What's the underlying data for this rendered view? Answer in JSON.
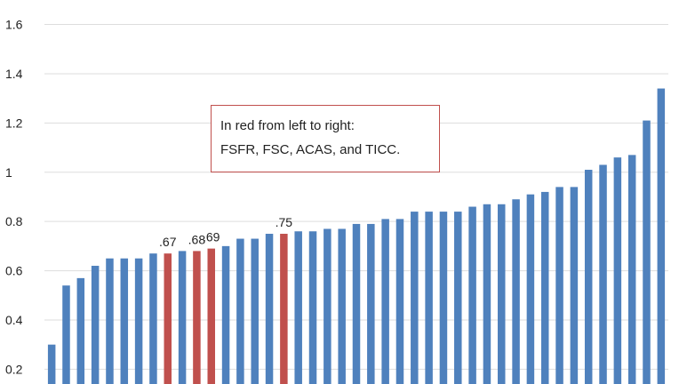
{
  "chart_data": {
    "type": "bar",
    "y_ticks": [
      "0.2",
      "0.4",
      "0.6",
      "0.8",
      "1",
      "1.2",
      "1.4",
      "1.6"
    ],
    "ylim": [
      0.14,
      1.62
    ],
    "grid": "horizontal",
    "colors": {
      "default": "#4f81bd",
      "highlight": "#c0504d"
    },
    "values": [
      0.3,
      0.54,
      0.57,
      0.62,
      0.65,
      0.65,
      0.65,
      0.67,
      0.67,
      0.68,
      0.68,
      0.69,
      0.7,
      0.73,
      0.73,
      0.75,
      0.75,
      0.76,
      0.76,
      0.77,
      0.77,
      0.79,
      0.79,
      0.81,
      0.81,
      0.84,
      0.84,
      0.84,
      0.84,
      0.86,
      0.87,
      0.87,
      0.89,
      0.91,
      0.92,
      0.94,
      0.94,
      1.01,
      1.03,
      1.06,
      1.07,
      1.21,
      1.34
    ],
    "highlight_indices": [
      8,
      10,
      11,
      16
    ],
    "data_labels": [
      {
        "index": 8,
        "text": ".67"
      },
      {
        "index": 10,
        "text": ".68"
      },
      {
        "index": 11,
        "text": ".69"
      },
      {
        "index": 16,
        "text": ".75"
      }
    ],
    "annotation": [
      "In red from left to right:",
      "FSFR, FSC, ACAS, and TICC."
    ]
  }
}
